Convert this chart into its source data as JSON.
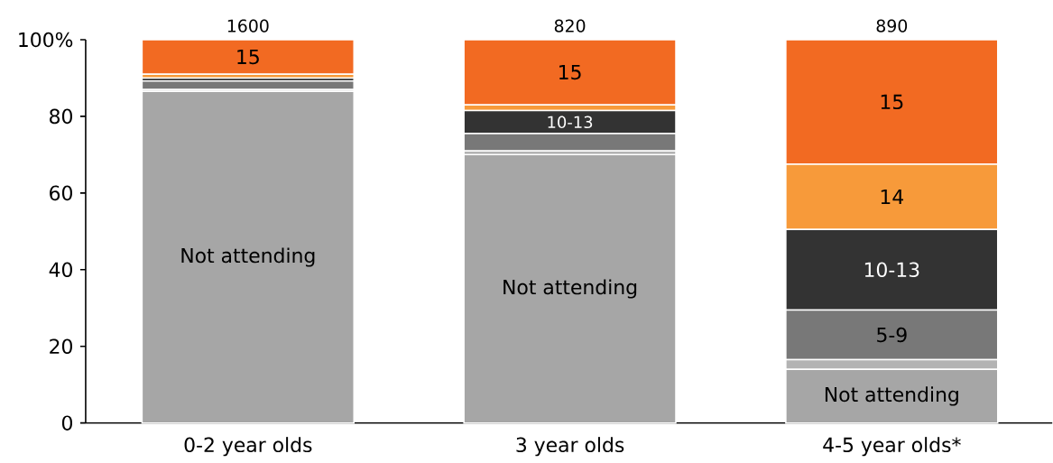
{
  "chart_data": {
    "type": "bar",
    "stacked": true,
    "categories": [
      "0-2 year olds",
      "3 year olds",
      "4-5 year olds*"
    ],
    "series": [
      {
        "name": "Not attending",
        "color": "#a6a6a6",
        "values": [
          86.5,
          70,
          14
        ]
      },
      {
        "color": "#b3b3b3",
        "values": [
          0.5,
          1,
          2.5
        ]
      },
      {
        "name": "5-9",
        "color": "#787878",
        "values": [
          2.2,
          4.5,
          13
        ]
      },
      {
        "name": "10-13",
        "color": "#333333",
        "values": [
          0.8,
          6,
          21
        ]
      },
      {
        "name": "14",
        "color": "#f79a3a",
        "values": [
          1,
          1.5,
          17
        ]
      },
      {
        "name": "15",
        "color": "#f26a22",
        "values": [
          9,
          17,
          32.5
        ]
      }
    ],
    "ylim": [
      0,
      100
    ],
    "yticks": [
      0,
      20,
      40,
      60,
      80,
      {
        "value": 100,
        "label": "100%"
      }
    ],
    "annotations": [
      "1600",
      "820",
      "890"
    ]
  }
}
